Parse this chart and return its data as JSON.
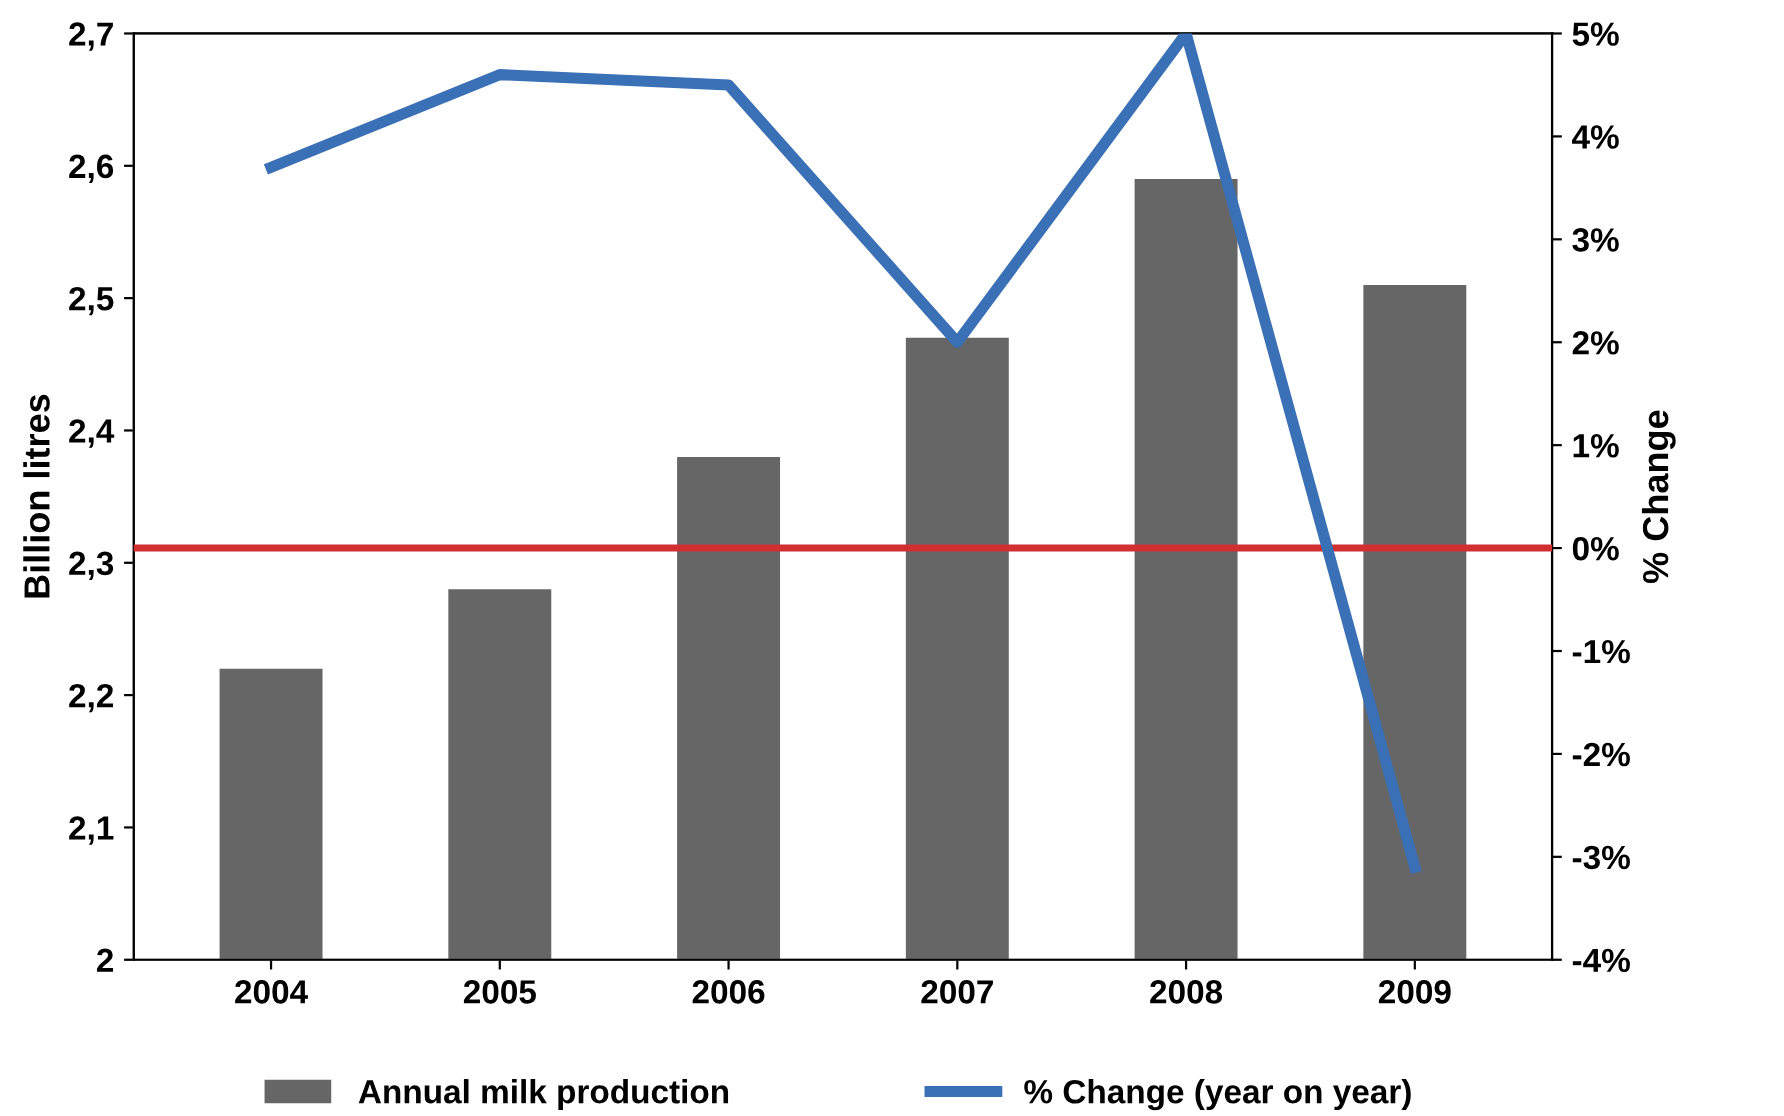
{
  "chart_data": {
    "type": "bar",
    "categories": [
      "2004",
      "2005",
      "2006",
      "2007",
      "2008",
      "2009"
    ],
    "ylabel": "Billion litres",
    "y2label": "% Change",
    "series": [
      {
        "name": "Annual milk production",
        "color": "#666666",
        "values": [
          2.22,
          2.28,
          2.38,
          2.47,
          2.59,
          2.51
        ]
      },
      {
        "name": "% Change (year on year)",
        "type": "line",
        "axis": "y2",
        "color": "#3a70b5",
        "values": [
          3.7,
          4.6,
          4.5,
          2.0,
          5.0,
          -3.1
        ]
      }
    ],
    "ylim": [
      2,
      2.7
    ],
    "yticks": [
      2,
      {
        "value": 2.1,
        "label": "2,1"
      },
      {
        "value": 2.2,
        "label": "2,2"
      },
      {
        "value": 2.3,
        "label": "2,3"
      },
      {
        "value": 2.4,
        "label": "2,4"
      },
      {
        "value": 2.5,
        "label": "2,5"
      },
      {
        "value": 2.6,
        "label": "2,6"
      },
      {
        "value": 2.7,
        "label": "2,7"
      }
    ],
    "y2lim": [
      -4,
      5
    ],
    "y2ticks": [
      {
        "value": -4,
        "label": "-4%"
      },
      {
        "value": -3,
        "label": "-3%"
      },
      {
        "value": -2,
        "label": "-2%"
      },
      {
        "value": -1,
        "label": "-1%"
      },
      {
        "value": 0,
        "label": "0%"
      },
      {
        "value": 1,
        "label": "1%"
      },
      {
        "value": 2,
        "label": "2%"
      },
      {
        "value": 3,
        "label": "3%"
      },
      {
        "value": 4,
        "label": "4%"
      },
      {
        "value": 5,
        "label": "5%"
      }
    ],
    "ref_lines": [
      {
        "axis": "y2",
        "value": 0,
        "label": null,
        "color": "#d03030"
      }
    ],
    "legend": "bottom",
    "grid": false,
    "marker": "none",
    "line_style": "solid"
  }
}
